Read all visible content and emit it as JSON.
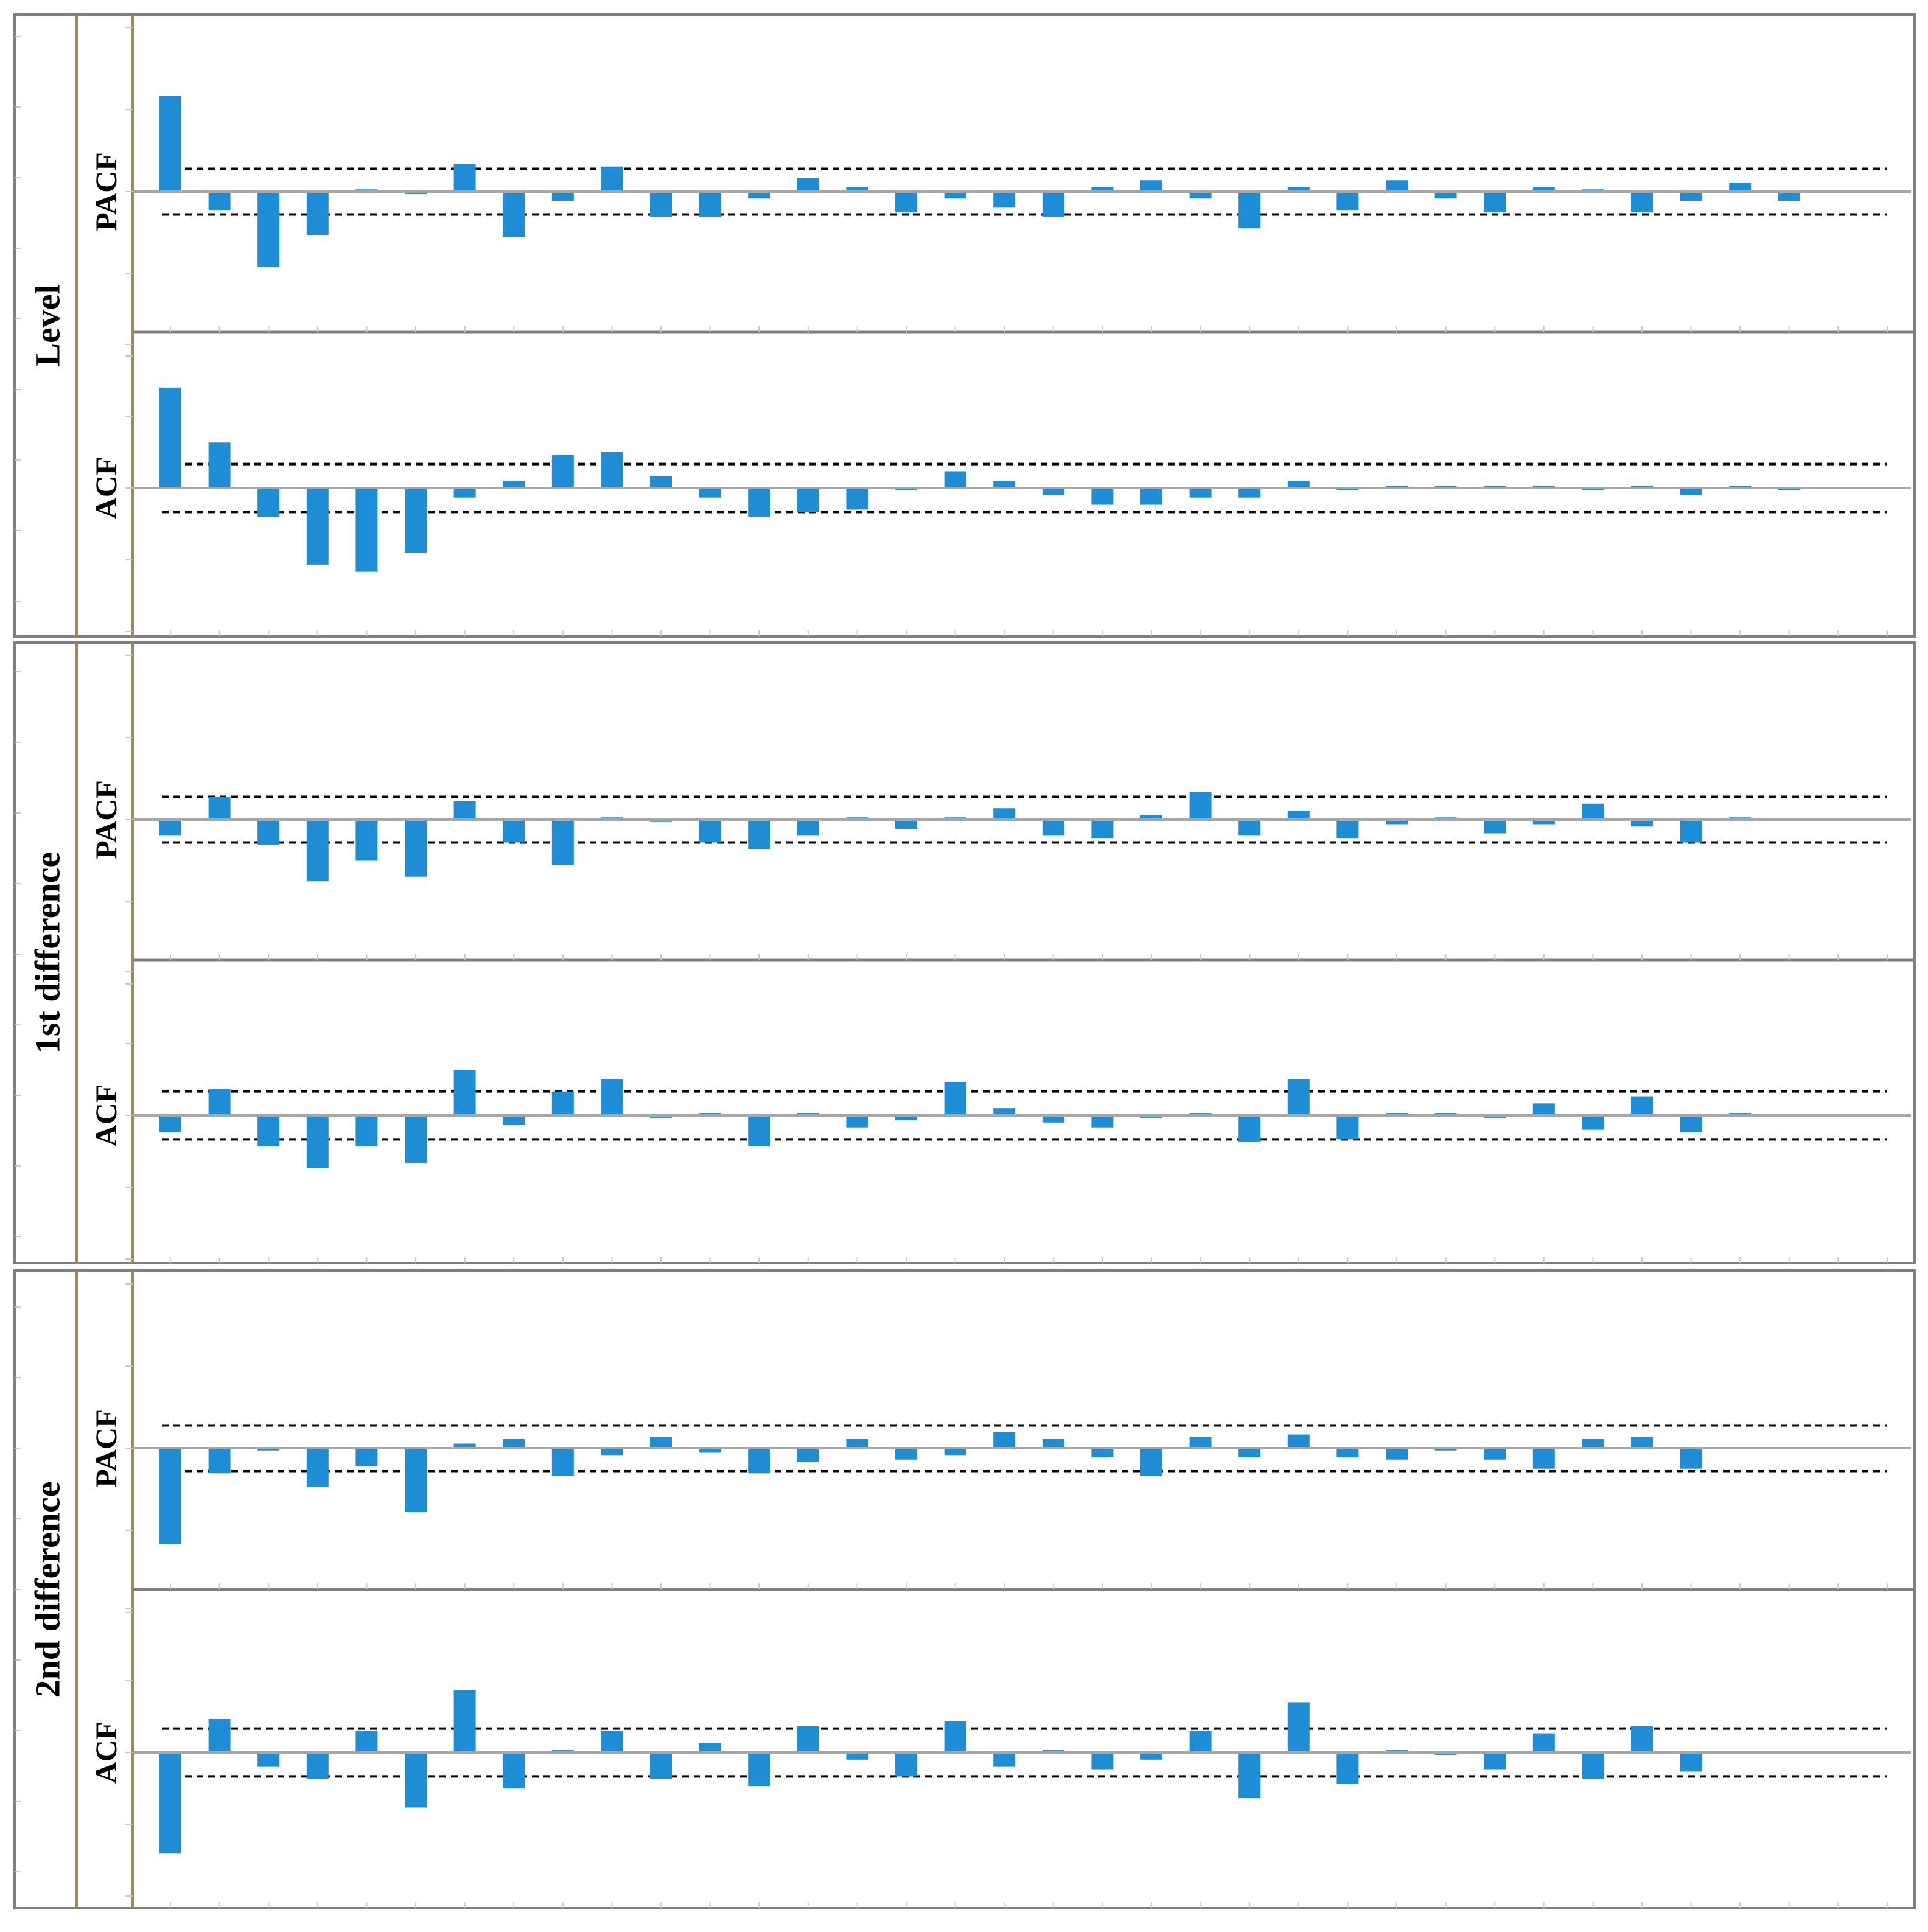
{
  "figure": {
    "groups": [
      {
        "label": "Level"
      },
      {
        "label": "1st difference"
      },
      {
        "label": "2nd difference"
      }
    ]
  },
  "chart_data": [
    {
      "type": "bar",
      "group": "Level",
      "panel": "PACF",
      "x": [
        1,
        2,
        3,
        4,
        5,
        6,
        7,
        8,
        9,
        10,
        11,
        12,
        13,
        14,
        15,
        16,
        17,
        18,
        19,
        20,
        21,
        22,
        23,
        24,
        25,
        26,
        27,
        28,
        29,
        30,
        31,
        32,
        33,
        34,
        35,
        36
      ],
      "values": [
        0.42,
        -0.08,
        -0.33,
        -0.19,
        0.01,
        -0.01,
        0.12,
        -0.2,
        -0.04,
        0.11,
        -0.11,
        -0.11,
        -0.03,
        0.06,
        0.02,
        -0.09,
        -0.03,
        -0.07,
        -0.11,
        0.02,
        0.05,
        -0.03,
        -0.16,
        0.02,
        -0.08,
        0.05,
        -0.03,
        -0.09,
        0.02,
        0.01,
        -0.09,
        -0.04,
        0.04,
        -0.04,
        0,
        0
      ],
      "confidence_limit": 0.1,
      "ylim": [
        -0.72,
        0.72
      ],
      "grid": false
    },
    {
      "type": "bar",
      "group": "Level",
      "panel": "ACF",
      "x": [
        1,
        2,
        3,
        4,
        5,
        6,
        7,
        8,
        9,
        10,
        11,
        12,
        13,
        14,
        15,
        16,
        17,
        18,
        19,
        20,
        21,
        22,
        23,
        24,
        25,
        26,
        27,
        28,
        29,
        30,
        31,
        32,
        33,
        34,
        35,
        36
      ],
      "values": [
        0.42,
        0.19,
        -0.12,
        -0.32,
        -0.35,
        -0.27,
        -0.04,
        0.03,
        0.14,
        0.15,
        0.05,
        -0.04,
        -0.12,
        -0.1,
        -0.09,
        -0.01,
        0.07,
        0.03,
        -0.03,
        -0.07,
        -0.07,
        -0.04,
        -0.04,
        0.03,
        -0.01,
        0.01,
        0.01,
        0.01,
        0.01,
        -0.01,
        0.01,
        -0.03,
        0.01,
        -0.01,
        0,
        0
      ],
      "confidence_limit": 0.1,
      "ylim": [
        -0.6,
        0.6
      ],
      "grid": false
    },
    {
      "type": "bar",
      "group": "1st difference",
      "panel": "PACF",
      "x": [
        1,
        2,
        3,
        4,
        5,
        6,
        7,
        8,
        9,
        10,
        11,
        12,
        13,
        14,
        15,
        16,
        17,
        18,
        19,
        20,
        21,
        22,
        23,
        24,
        25,
        26,
        27,
        28,
        29,
        30,
        31,
        32,
        33,
        34,
        35,
        36
      ],
      "values": [
        -0.07,
        0.1,
        -0.11,
        -0.27,
        -0.18,
        -0.25,
        0.08,
        -0.1,
        -0.2,
        0.01,
        -0.01,
        -0.1,
        -0.13,
        -0.07,
        0.01,
        -0.04,
        0.01,
        0.05,
        -0.07,
        -0.08,
        0.02,
        0.12,
        -0.07,
        0.04,
        -0.08,
        -0.02,
        0.01,
        -0.06,
        -0.02,
        0.07,
        -0.03,
        -0.1,
        0.01,
        0,
        0,
        0
      ],
      "confidence_limit": 0.1,
      "ylim": [
        -0.72,
        0.72
      ],
      "grid": false
    },
    {
      "type": "bar",
      "group": "1st difference",
      "panel": "ACF",
      "x": [
        1,
        2,
        3,
        4,
        5,
        6,
        7,
        8,
        9,
        10,
        11,
        12,
        13,
        14,
        15,
        16,
        17,
        18,
        19,
        20,
        21,
        22,
        23,
        24,
        25,
        26,
        27,
        28,
        29,
        30,
        31,
        32,
        33,
        34,
        35,
        36
      ],
      "values": [
        -0.07,
        0.11,
        -0.13,
        -0.22,
        -0.13,
        -0.2,
        0.19,
        -0.04,
        0.1,
        0.15,
        -0.01,
        0.01,
        -0.13,
        0.01,
        -0.05,
        -0.02,
        0.14,
        0.03,
        -0.03,
        -0.05,
        -0.01,
        0.01,
        -0.11,
        0.15,
        -0.1,
        0.01,
        0.01,
        -0.01,
        0.05,
        -0.06,
        0.08,
        -0.07,
        0.01,
        0,
        0,
        0
      ],
      "confidence_limit": 0.1,
      "ylim": [
        -0.6,
        0.6
      ],
      "grid": false
    },
    {
      "type": "bar",
      "group": "2nd difference",
      "panel": "PACF",
      "x": [
        1,
        2,
        3,
        4,
        5,
        6,
        7,
        8,
        9,
        10,
        11,
        12,
        13,
        14,
        15,
        16,
        17,
        18,
        19,
        20,
        21,
        22,
        23,
        24,
        25,
        26,
        27,
        28,
        29,
        30,
        31,
        32,
        33,
        34,
        35,
        36
      ],
      "values": [
        -0.42,
        -0.11,
        -0.01,
        -0.17,
        -0.08,
        -0.28,
        0.02,
        0.04,
        -0.12,
        -0.03,
        0.05,
        -0.02,
        -0.11,
        -0.06,
        0.04,
        -0.05,
        -0.03,
        0.07,
        0.04,
        -0.04,
        -0.12,
        0.05,
        -0.04,
        0.06,
        -0.04,
        -0.05,
        -0.01,
        -0.05,
        -0.09,
        0.04,
        0.05,
        -0.09,
        0,
        0,
        0,
        0
      ],
      "confidence_limit": 0.1,
      "ylim": [
        -0.72,
        0.72
      ],
      "grid": false
    },
    {
      "type": "bar",
      "group": "2nd difference",
      "panel": "ACF",
      "x": [
        1,
        2,
        3,
        4,
        5,
        6,
        7,
        8,
        9,
        10,
        11,
        12,
        13,
        14,
        15,
        16,
        17,
        18,
        19,
        20,
        21,
        22,
        23,
        24,
        25,
        26,
        27,
        28,
        29,
        30,
        31,
        32,
        33,
        34,
        35,
        36
      ],
      "values": [
        -0.42,
        0.14,
        -0.06,
        -0.11,
        0.09,
        -0.23,
        0.26,
        -0.15,
        0.01,
        0.09,
        -0.11,
        0.04,
        -0.14,
        0.11,
        -0.03,
        -0.1,
        0.13,
        -0.06,
        0.01,
        -0.07,
        -0.03,
        0.09,
        -0.19,
        0.21,
        -0.13,
        0.01,
        -0.01,
        -0.07,
        0.08,
        -0.11,
        0.11,
        -0.08,
        0,
        0,
        0,
        0
      ],
      "confidence_limit": 0.1,
      "ylim": [
        -0.6,
        0.6
      ],
      "grid": false
    }
  ],
  "colors": {
    "bar": "#1f8dd6",
    "zero_line": "#a6a6a6",
    "confidence_line": "#000000",
    "group_border": "#7f7f7f",
    "panel_divider": "#7f7f7f",
    "label_column_rule": "#9c8a5a",
    "tick": "#c8c8c8"
  }
}
